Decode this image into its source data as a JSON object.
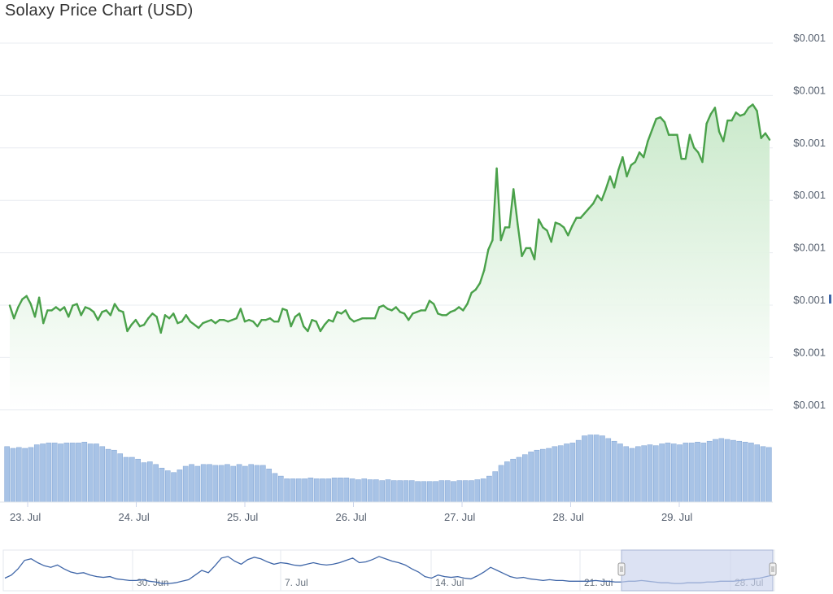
{
  "chart_data": {
    "type": "line",
    "title": "Solaxy Price Chart (USD)",
    "y_tick_labels": [
      "$0.001",
      "$0.001",
      "$0.001",
      "$0.001",
      "$0.001",
      "$0.001",
      "$0.001",
      "$0.001"
    ],
    "x_tick_labels": [
      "23. Jul",
      "24. Jul",
      "25. Jul",
      "26. Jul",
      "27. Jul",
      "28. Jul",
      "29. Jul"
    ],
    "grid": true,
    "colors": {
      "price_line": "#4aa14a",
      "price_fill": "#d2ecd3",
      "volume_bar": "#a8c3e6",
      "navigator_line": "#3f66a8",
      "navigator_mask": "#c9d3ec"
    },
    "price_series": {
      "name": "Price",
      "values": [
        1.55,
        1.47,
        1.54,
        1.59,
        1.61,
        1.56,
        1.48,
        1.6,
        1.44,
        1.52,
        1.52,
        1.54,
        1.52,
        1.54,
        1.48,
        1.55,
        1.56,
        1.49,
        1.54,
        1.53,
        1.51,
        1.46,
        1.51,
        1.52,
        1.49,
        1.56,
        1.52,
        1.51,
        1.39,
        1.43,
        1.46,
        1.42,
        1.43,
        1.47,
        1.5,
        1.48,
        1.38,
        1.49,
        1.47,
        1.5,
        1.44,
        1.45,
        1.49,
        1.45,
        1.43,
        1.41,
        1.44,
        1.45,
        1.46,
        1.44,
        1.46,
        1.46,
        1.45,
        1.46,
        1.47,
        1.53,
        1.45,
        1.46,
        1.45,
        1.42,
        1.46,
        1.46,
        1.47,
        1.45,
        1.45,
        1.53,
        1.52,
        1.42,
        1.48,
        1.5,
        1.42,
        1.39,
        1.46,
        1.45,
        1.39,
        1.43,
        1.46,
        1.45,
        1.51,
        1.5,
        1.52,
        1.47,
        1.45,
        1.46,
        1.47,
        1.47,
        1.47,
        1.47,
        1.54,
        1.55,
        1.53,
        1.52,
        1.54,
        1.51,
        1.5,
        1.46,
        1.5,
        1.51,
        1.52,
        1.52,
        1.58,
        1.56,
        1.5,
        1.49,
        1.49,
        1.51,
        1.52,
        1.54,
        1.52,
        1.56,
        1.63,
        1.65,
        1.69,
        1.77,
        1.9,
        1.96,
        2.41,
        1.96,
        2.04,
        2.04,
        2.28,
        2.06,
        1.86,
        1.91,
        1.91,
        1.84,
        2.09,
        2.04,
        2.02,
        1.95,
        2.07,
        2.06,
        2.04,
        1.99,
        2.05,
        2.1,
        2.1,
        2.13,
        2.16,
        2.19,
        2.24,
        2.21,
        2.28,
        2.36,
        2.29,
        2.4,
        2.48,
        2.36,
        2.43,
        2.45,
        2.51,
        2.48,
        2.58,
        2.65,
        2.72,
        2.73,
        2.7,
        2.62,
        2.62,
        2.62,
        2.47,
        2.47,
        2.62,
        2.54,
        2.51,
        2.45,
        2.69,
        2.75,
        2.79,
        2.64,
        2.58,
        2.71,
        2.71,
        2.76,
        2.74,
        2.75,
        2.79,
        2.81,
        2.77,
        2.6,
        2.63,
        2.59
      ]
    },
    "volume_series": {
      "name": "Volume",
      "values": [
        6.2,
        6.0,
        6.1,
        6.0,
        6.1,
        6.4,
        6.5,
        6.6,
        6.6,
        6.5,
        6.6,
        6.6,
        6.6,
        6.7,
        6.5,
        6.5,
        6.2,
        5.9,
        5.8,
        5.4,
        5.0,
        5.0,
        4.8,
        4.4,
        4.5,
        4.2,
        3.8,
        3.5,
        3.3,
        3.6,
        4.0,
        4.2,
        4.0,
        4.2,
        4.2,
        4.1,
        4.1,
        4.2,
        4.0,
        4.2,
        4.0,
        4.2,
        4.1,
        4.1,
        3.7,
        3.2,
        2.9,
        2.6,
        2.6,
        2.6,
        2.6,
        2.7,
        2.6,
        2.6,
        2.6,
        2.7,
        2.7,
        2.7,
        2.6,
        2.5,
        2.6,
        2.5,
        2.5,
        2.4,
        2.5,
        2.4,
        2.4,
        2.4,
        2.4,
        2.3,
        2.3,
        2.3,
        2.3,
        2.4,
        2.4,
        2.3,
        2.4,
        2.4,
        2.4,
        2.5,
        2.6,
        2.9,
        3.4,
        4.1,
        4.5,
        4.8,
        5.0,
        5.3,
        5.6,
        5.8,
        5.9,
        6.0,
        6.2,
        6.3,
        6.5,
        6.6,
        6.9,
        7.4,
        7.5,
        7.5,
        7.4,
        7.1,
        6.8,
        6.5,
        6.2,
        6.0,
        6.2,
        6.3,
        6.4,
        6.3,
        6.5,
        6.6,
        6.5,
        6.4,
        6.6,
        6.6,
        6.7,
        6.6,
        6.8,
        7.0,
        7.1,
        7.0,
        6.9,
        6.8,
        6.7,
        6.6,
        6.4,
        6.2,
        6.1
      ]
    },
    "navigator": {
      "x_tick_labels": [
        "30. Jun",
        "7. Jul",
        "14. Jul",
        "21. Jul",
        "28. Jul"
      ],
      "values": [
        10,
        14,
        22,
        33,
        35,
        30,
        26,
        24,
        27,
        22,
        18,
        16,
        17,
        14,
        12,
        11,
        12,
        9,
        8,
        7,
        7,
        8,
        6,
        5,
        3,
        3,
        4,
        6,
        8,
        14,
        20,
        17,
        26,
        36,
        38,
        32,
        28,
        34,
        37,
        35,
        31,
        28,
        30,
        29,
        27,
        26,
        28,
        30,
        28,
        27,
        28,
        30,
        33,
        36,
        30,
        31,
        34,
        38,
        35,
        32,
        30,
        27,
        22,
        18,
        12,
        10,
        14,
        12,
        11,
        12,
        10,
        9,
        13,
        18,
        24,
        20,
        16,
        12,
        10,
        11,
        9,
        8,
        7,
        8,
        7,
        7,
        6,
        6,
        6,
        6,
        7,
        6,
        6,
        5,
        5,
        6,
        6,
        7,
        6,
        5,
        4,
        4,
        3,
        3,
        4,
        4,
        4,
        5,
        5,
        6,
        6,
        6,
        7,
        8,
        9,
        10,
        12,
        14
      ]
    }
  }
}
